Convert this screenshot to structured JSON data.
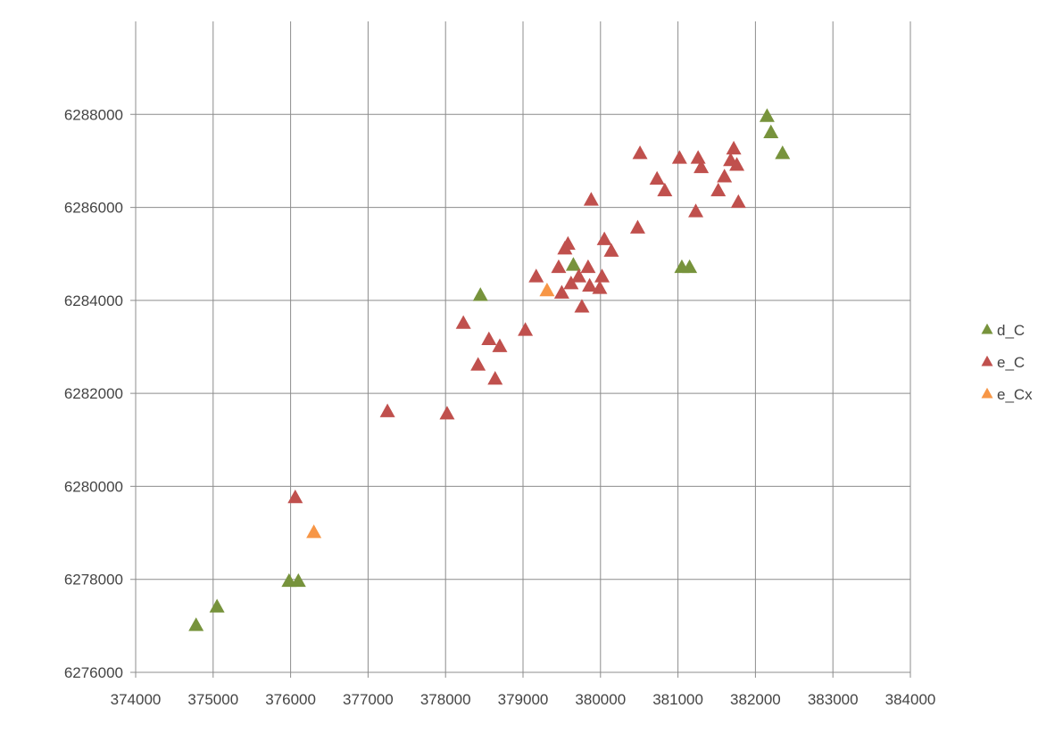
{
  "chart_data": {
    "type": "scatter",
    "title": "",
    "xlabel": "",
    "ylabel": "",
    "xlim": [
      374000,
      384000
    ],
    "ylim": [
      6276000,
      6290000
    ],
    "x_ticks": [
      374000,
      375000,
      376000,
      377000,
      378000,
      379000,
      380000,
      381000,
      382000,
      383000,
      384000
    ],
    "y_ticks": [
      6276000,
      6278000,
      6280000,
      6282000,
      6284000,
      6286000,
      6288000
    ],
    "grid": true,
    "marker": "triangle",
    "legend_position": "right",
    "series": [
      {
        "name": "d_C",
        "color": "#77933C",
        "points": [
          [
            374780,
            6277000
          ],
          [
            375050,
            6277400
          ],
          [
            375980,
            6277950
          ],
          [
            376100,
            6277950
          ],
          [
            378450,
            6284100
          ],
          [
            379650,
            6284750
          ],
          [
            381050,
            6284700
          ],
          [
            381150,
            6284700
          ],
          [
            382150,
            6287950
          ],
          [
            382200,
            6287600
          ],
          [
            382350,
            6287150
          ]
        ]
      },
      {
        "name": "e_C",
        "color": "#C0504D",
        "points": [
          [
            376060,
            6279750
          ],
          [
            377250,
            6281600
          ],
          [
            378020,
            6281550
          ],
          [
            378230,
            6283500
          ],
          [
            378420,
            6282600
          ],
          [
            378560,
            6283150
          ],
          [
            378640,
            6282300
          ],
          [
            378700,
            6283000
          ],
          [
            379030,
            6283350
          ],
          [
            379170,
            6284500
          ],
          [
            379460,
            6284700
          ],
          [
            379500,
            6284150
          ],
          [
            379540,
            6285100
          ],
          [
            379580,
            6285200
          ],
          [
            379620,
            6284350
          ],
          [
            379720,
            6284500
          ],
          [
            379760,
            6283850
          ],
          [
            379840,
            6284700
          ],
          [
            379860,
            6284300
          ],
          [
            379880,
            6286150
          ],
          [
            379990,
            6284250
          ],
          [
            380020,
            6284500
          ],
          [
            380050,
            6285300
          ],
          [
            380140,
            6285050
          ],
          [
            380480,
            6285550
          ],
          [
            380510,
            6287150
          ],
          [
            380730,
            6286600
          ],
          [
            380830,
            6286350
          ],
          [
            381020,
            6287050
          ],
          [
            381230,
            6285900
          ],
          [
            381260,
            6287050
          ],
          [
            381300,
            6286850
          ],
          [
            381520,
            6286350
          ],
          [
            381600,
            6286650
          ],
          [
            381680,
            6287000
          ],
          [
            381720,
            6287250
          ],
          [
            381760,
            6286900
          ],
          [
            381780,
            6286100
          ]
        ]
      },
      {
        "name": "e_Cx",
        "color": "#F79646",
        "points": [
          [
            376300,
            6279000
          ],
          [
            379310,
            6284200
          ]
        ]
      }
    ]
  }
}
